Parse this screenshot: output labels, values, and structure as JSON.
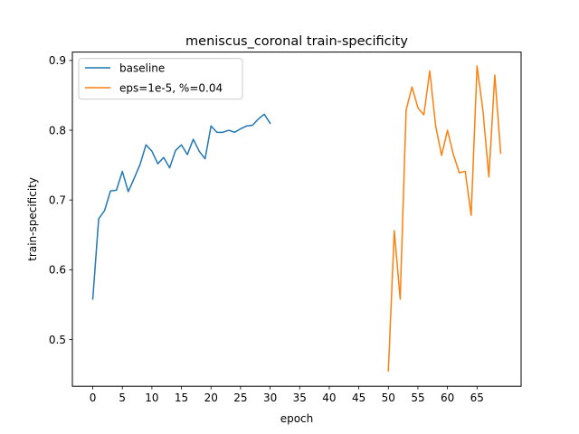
{
  "chart_data": {
    "type": "line",
    "title": "meniscus_coronal train-specificity",
    "xlabel": "epoch",
    "ylabel": "train-specificity",
    "xlim": [
      -3.45,
      72.45
    ],
    "ylim": [
      0.433,
      0.912
    ],
    "xticks": [
      0,
      5,
      10,
      15,
      20,
      25,
      30,
      35,
      40,
      45,
      50,
      55,
      60,
      65
    ],
    "yticks": [
      0.5,
      0.6,
      0.7,
      0.8,
      0.9
    ],
    "legend_position": "upper-left",
    "grid": false,
    "series": [
      {
        "name": "baseline",
        "color": "#1f77b4",
        "x": [
          0,
          1,
          2,
          3,
          4,
          5,
          6,
          7,
          8,
          9,
          10,
          11,
          12,
          13,
          14,
          15,
          16,
          17,
          18,
          19,
          20,
          21,
          22,
          23,
          24,
          25,
          26,
          27,
          28,
          29,
          30
        ],
        "y": [
          0.558,
          0.673,
          0.685,
          0.713,
          0.714,
          0.741,
          0.712,
          0.731,
          0.751,
          0.779,
          0.77,
          0.752,
          0.761,
          0.746,
          0.771,
          0.779,
          0.765,
          0.787,
          0.77,
          0.759,
          0.806,
          0.797,
          0.797,
          0.8,
          0.797,
          0.802,
          0.806,
          0.807,
          0.816,
          0.823,
          0.81
        ]
      },
      {
        "name": "eps=1e-5, %=0.04",
        "color": "#ff7f0e",
        "x": [
          50,
          51,
          52,
          53,
          54,
          55,
          56,
          57,
          58,
          59,
          60,
          61,
          62,
          63,
          64,
          65,
          66,
          67,
          68,
          69
        ],
        "y": [
          0.455,
          0.656,
          0.558,
          0.829,
          0.862,
          0.832,
          0.822,
          0.885,
          0.806,
          0.764,
          0.8,
          0.765,
          0.739,
          0.741,
          0.678,
          0.892,
          0.828,
          0.733,
          0.879,
          0.767
        ]
      }
    ]
  }
}
